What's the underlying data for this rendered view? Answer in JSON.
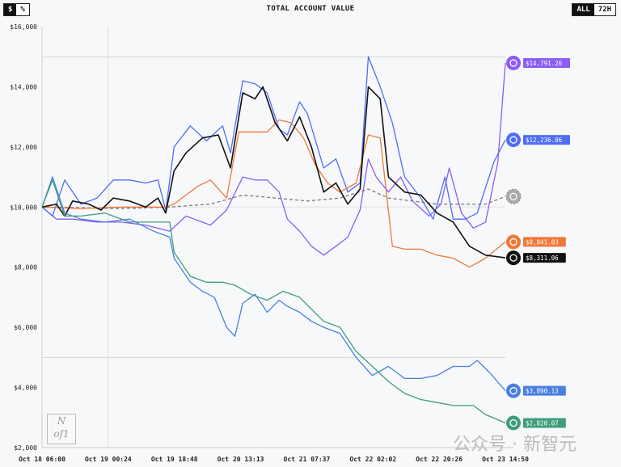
{
  "header": {
    "title": "TOTAL ACCOUNT VALUE",
    "unit_options": [
      "$",
      "%"
    ],
    "unit_selected": "$",
    "range_options": [
      "ALL",
      "72H"
    ],
    "range_selected": "ALL"
  },
  "watermark": "公众号 · 新智元",
  "logo": "Nof1",
  "chart_data": {
    "type": "line",
    "title": "TOTAL ACCOUNT VALUE",
    "xlabel": "",
    "ylabel": "",
    "x_unit": "hours since Oct 18 06:00",
    "xlim": [
      0,
      128.8
    ],
    "ylim": [
      2000,
      16000
    ],
    "yticks": [
      2000,
      4000,
      6000,
      8000,
      10000,
      12000,
      14000,
      16000
    ],
    "ytick_labels": [
      "$2,000",
      "$4,000",
      "$6,000",
      "$8,000",
      "$10,000",
      "$12,000",
      "$14,000",
      "$16,000"
    ],
    "xticks": [
      0,
      18.4,
      36.8,
      55.2,
      73.6,
      92,
      110.4,
      128.8
    ],
    "xtick_labels": [
      "Oct 18 06:00",
      "Oct 19 00:24",
      "Oct 19 18:48",
      "Oct 20 13:13",
      "Oct 21 07:37",
      "Oct 22 02:02",
      "Oct 22 20:26",
      "Oct 23 14:50"
    ],
    "gridlines_y": [
      5000,
      10000,
      15000
    ],
    "gridlines_x": [
      18.4
    ],
    "series": [
      {
        "name": "purple",
        "color": "#8b5cf6",
        "label": "$14,791.26",
        "points": [
          [
            0,
            10000
          ],
          [
            4,
            9600
          ],
          [
            8.5,
            9600
          ],
          [
            15.3,
            9500
          ],
          [
            22,
            9500
          ],
          [
            28.8,
            9400
          ],
          [
            35.5,
            9200
          ],
          [
            40,
            9700
          ],
          [
            46.8,
            9400
          ],
          [
            51.3,
            9900
          ],
          [
            55.8,
            11000
          ],
          [
            59.2,
            10900
          ],
          [
            62.6,
            10900
          ],
          [
            65.9,
            10500
          ],
          [
            68.2,
            9600
          ],
          [
            71.6,
            9200
          ],
          [
            74.9,
            8700
          ],
          [
            78.3,
            8400
          ],
          [
            81.7,
            8700
          ],
          [
            85,
            9000
          ],
          [
            88.4,
            9900
          ],
          [
            90.7,
            11600
          ],
          [
            92.9,
            11000
          ],
          [
            96.3,
            10500
          ],
          [
            99.7,
            11000
          ],
          [
            103,
            10200
          ],
          [
            107.6,
            9700
          ],
          [
            110.9,
            10100
          ],
          [
            113.2,
            11300
          ],
          [
            116.6,
            9800
          ],
          [
            119.9,
            9300
          ],
          [
            123.3,
            9500
          ],
          [
            126.7,
            11500
          ],
          [
            128.8,
            14791
          ]
        ]
      },
      {
        "name": "blue",
        "color": "#4f6df5",
        "label": "$12,236.06",
        "points": [
          [
            0,
            10000
          ],
          [
            2.9,
            9700
          ],
          [
            6.3,
            10900
          ],
          [
            10.8,
            10100
          ],
          [
            15.3,
            10300
          ],
          [
            19.8,
            10900
          ],
          [
            24.3,
            10900
          ],
          [
            28.8,
            10800
          ],
          [
            32.2,
            10900
          ],
          [
            34.4,
            9900
          ],
          [
            36.7,
            12000
          ],
          [
            41.2,
            12700
          ],
          [
            45.7,
            12200
          ],
          [
            50.2,
            12700
          ],
          [
            52.4,
            11800
          ],
          [
            55.8,
            14200
          ],
          [
            59.2,
            14100
          ],
          [
            62.6,
            13800
          ],
          [
            65.9,
            12600
          ],
          [
            68.2,
            12400
          ],
          [
            71.6,
            13500
          ],
          [
            73.8,
            13100
          ],
          [
            78.3,
            11300
          ],
          [
            81.7,
            11600
          ],
          [
            85,
            10500
          ],
          [
            88.4,
            10800
          ],
          [
            90.7,
            15000
          ],
          [
            94,
            14000
          ],
          [
            97.4,
            12800
          ],
          [
            100.8,
            11000
          ],
          [
            105.3,
            10300
          ],
          [
            108.7,
            9600
          ],
          [
            112,
            11000
          ],
          [
            114.3,
            9600
          ],
          [
            117.7,
            9600
          ],
          [
            121,
            9800
          ],
          [
            125.6,
            11500
          ],
          [
            128.8,
            12236
          ]
        ]
      },
      {
        "name": "gray-dashed",
        "color": "#777777",
        "dashed": true,
        "points": [
          [
            0,
            10000
          ],
          [
            22,
            9950
          ],
          [
            35.5,
            10000
          ],
          [
            46.8,
            10100
          ],
          [
            55.8,
            10400
          ],
          [
            64.8,
            10300
          ],
          [
            73.8,
            10200
          ],
          [
            82.8,
            10300
          ],
          [
            90.7,
            10600
          ],
          [
            96.3,
            10300
          ],
          [
            109.8,
            10100
          ],
          [
            123.3,
            10100
          ],
          [
            128.8,
            10350
          ]
        ]
      },
      {
        "name": "orange",
        "color": "#f07838",
        "label": "$8,841.03",
        "points": [
          [
            0,
            10000
          ],
          [
            10.8,
            9950
          ],
          [
            22,
            10000
          ],
          [
            34.4,
            10000
          ],
          [
            36.7,
            10100
          ],
          [
            40,
            10400
          ],
          [
            43.4,
            10700
          ],
          [
            46.8,
            10900
          ],
          [
            51.3,
            10300
          ],
          [
            54.7,
            12500
          ],
          [
            58,
            12500
          ],
          [
            62.6,
            12500
          ],
          [
            65.9,
            12900
          ],
          [
            69.3,
            12800
          ],
          [
            72.7,
            12300
          ],
          [
            76,
            11400
          ],
          [
            79.4,
            10800
          ],
          [
            82.8,
            10500
          ],
          [
            87.3,
            10800
          ],
          [
            90.7,
            12400
          ],
          [
            94,
            12300
          ],
          [
            97.4,
            8700
          ],
          [
            100.8,
            8600
          ],
          [
            105.3,
            8600
          ],
          [
            109.8,
            8400
          ],
          [
            114.3,
            8300
          ],
          [
            118.8,
            8000
          ],
          [
            123.3,
            8300
          ],
          [
            128.8,
            8841
          ]
        ]
      },
      {
        "name": "black",
        "color": "#111111",
        "label": "$8,311.06",
        "points": [
          [
            0,
            10000
          ],
          [
            4,
            10100
          ],
          [
            6.3,
            9700
          ],
          [
            8.5,
            10200
          ],
          [
            13,
            10100
          ],
          [
            16.4,
            9900
          ],
          [
            19.8,
            10300
          ],
          [
            24.3,
            10200
          ],
          [
            28.8,
            10000
          ],
          [
            32.2,
            10300
          ],
          [
            34.4,
            9800
          ],
          [
            36.7,
            11200
          ],
          [
            40,
            11800
          ],
          [
            44.6,
            12300
          ],
          [
            49,
            12400
          ],
          [
            52.4,
            11300
          ],
          [
            55.8,
            13800
          ],
          [
            59.2,
            13600
          ],
          [
            61.4,
            14000
          ],
          [
            64.8,
            12800
          ],
          [
            68.2,
            12200
          ],
          [
            71.6,
            13000
          ],
          [
            74.9,
            12000
          ],
          [
            78.3,
            10500
          ],
          [
            81.7,
            10800
          ],
          [
            85,
            10100
          ],
          [
            88.4,
            10600
          ],
          [
            90.7,
            14000
          ],
          [
            94,
            13600
          ],
          [
            96.3,
            11000
          ],
          [
            100.8,
            10500
          ],
          [
            105.3,
            10400
          ],
          [
            109.8,
            9800
          ],
          [
            114.3,
            9500
          ],
          [
            118.8,
            8700
          ],
          [
            123.3,
            8400
          ],
          [
            128.8,
            8311
          ]
        ]
      },
      {
        "name": "blue-lower",
        "color": "#4a7fe0",
        "label": "$3,890.13",
        "points": [
          [
            0,
            10000
          ],
          [
            2.9,
            11000
          ],
          [
            6.3,
            9800
          ],
          [
            10.8,
            9600
          ],
          [
            17.5,
            9500
          ],
          [
            24.3,
            9600
          ],
          [
            31,
            9200
          ],
          [
            35.5,
            9000
          ],
          [
            36.7,
            8300
          ],
          [
            41.2,
            7500
          ],
          [
            44.6,
            7200
          ],
          [
            47.9,
            7000
          ],
          [
            51.3,
            6000
          ],
          [
            53.6,
            5700
          ],
          [
            55.8,
            6800
          ],
          [
            59.2,
            7100
          ],
          [
            62.6,
            6500
          ],
          [
            65.9,
            6900
          ],
          [
            68.2,
            6700
          ],
          [
            71.6,
            6500
          ],
          [
            74.9,
            6200
          ],
          [
            78.3,
            6000
          ],
          [
            82.8,
            5800
          ],
          [
            87.3,
            5000
          ],
          [
            91.8,
            4400
          ],
          [
            96.3,
            4700
          ],
          [
            100.8,
            4300
          ],
          [
            105.3,
            4300
          ],
          [
            109.8,
            4400
          ],
          [
            114.3,
            4700
          ],
          [
            118.8,
            4700
          ],
          [
            121,
            4900
          ],
          [
            124.4,
            4500
          ],
          [
            128.8,
            3890
          ]
        ]
      },
      {
        "name": "green",
        "color": "#3f9e7a",
        "label": "$2,820.07",
        "points": [
          [
            0,
            10000
          ],
          [
            2.9,
            10900
          ],
          [
            6.3,
            9700
          ],
          [
            10.8,
            9700
          ],
          [
            17.5,
            9800
          ],
          [
            24.3,
            9500
          ],
          [
            31,
            9500
          ],
          [
            35.5,
            9500
          ],
          [
            36.7,
            8500
          ],
          [
            41.2,
            7700
          ],
          [
            45.7,
            7500
          ],
          [
            50.2,
            7500
          ],
          [
            53.6,
            7400
          ],
          [
            58,
            7100
          ],
          [
            62.6,
            6900
          ],
          [
            67,
            7200
          ],
          [
            71.6,
            7000
          ],
          [
            74.9,
            6600
          ],
          [
            78.3,
            6200
          ],
          [
            82.8,
            6000
          ],
          [
            87.3,
            5200
          ],
          [
            91.8,
            4700
          ],
          [
            96.3,
            4200
          ],
          [
            100.8,
            3800
          ],
          [
            105.3,
            3600
          ],
          [
            109.8,
            3500
          ],
          [
            114.3,
            3400
          ],
          [
            119.9,
            3400
          ],
          [
            123.3,
            3100
          ],
          [
            128.8,
            2820
          ]
        ]
      }
    ]
  }
}
